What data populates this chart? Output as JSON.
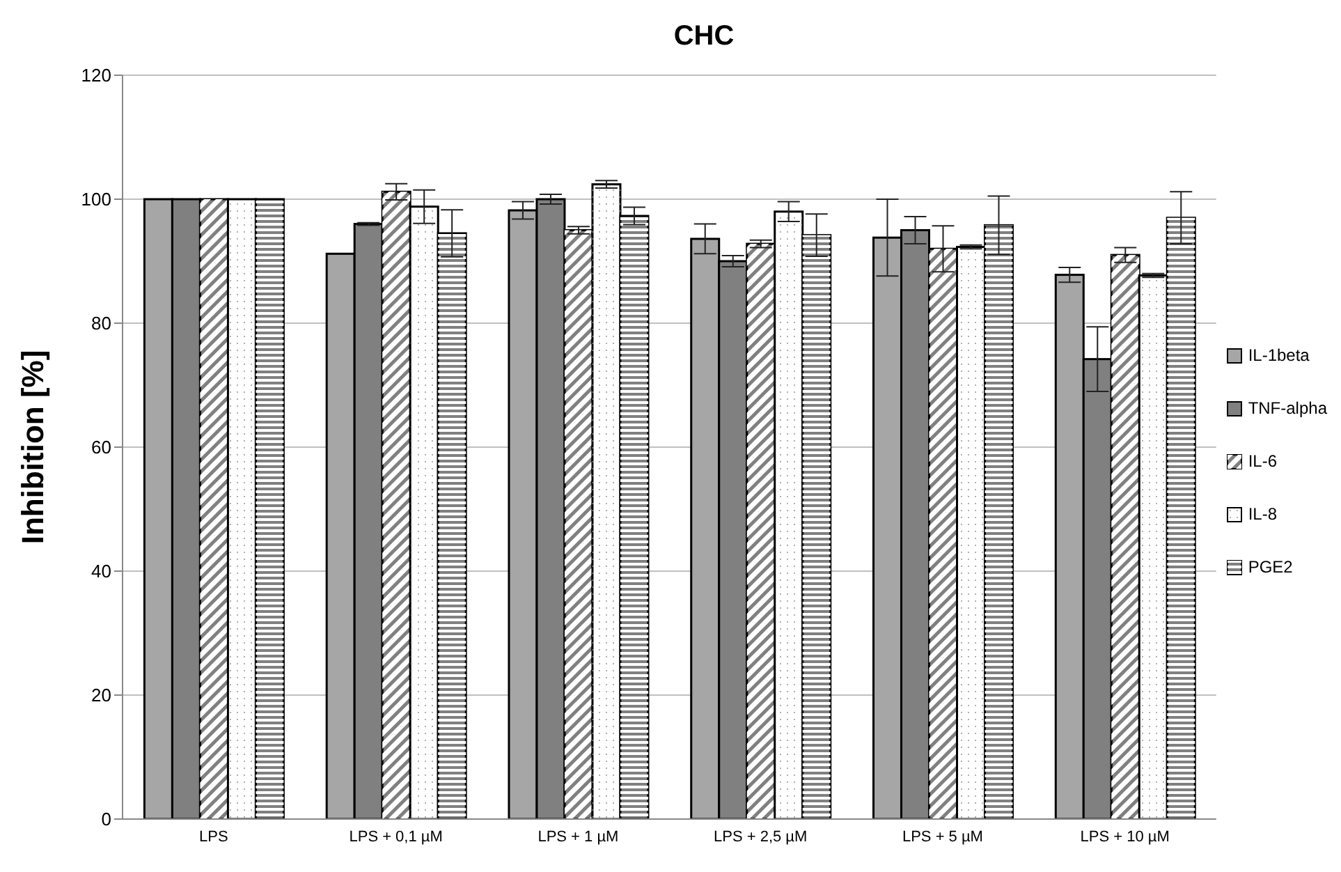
{
  "chart_data": {
    "type": "bar",
    "title": "CHC",
    "ylabel": "Inhibition [%]",
    "categories": [
      "LPS",
      "LPS + 0,1 µM",
      "LPS + 1 µM",
      "LPS + 2,5 µM",
      "LPS + 5 µM",
      "LPS + 10 µM"
    ],
    "series": [
      {
        "name": "IL-1beta",
        "color": "#a6a6a6",
        "values": [
          100,
          91.2,
          98.2,
          93.6,
          93.8,
          87.8
        ],
        "errors": [
          null,
          null,
          1.4,
          2.4,
          6.2,
          1.2
        ]
      },
      {
        "name": "TNF-alpha",
        "color": "#808080",
        "values": [
          100,
          96,
          100,
          90,
          95,
          74.2
        ],
        "errors": [
          null,
          0.2,
          0.8,
          0.9,
          2.2,
          5.2
        ]
      },
      {
        "name": "IL-6",
        "color": "#808080",
        "values": [
          100,
          101.2,
          95,
          92.8,
          92,
          91
        ],
        "errors": [
          null,
          1.3,
          0.6,
          0.6,
          3.7,
          1.2
        ]
      },
      {
        "name": "IL-8",
        "color": "#ffffff",
        "values": [
          100,
          98.8,
          102.4,
          98,
          92.3,
          87.7
        ],
        "errors": [
          null,
          2.7,
          0.6,
          1.6,
          0.3,
          0.3
        ]
      },
      {
        "name": "PGE2",
        "color": "#808080",
        "values": [
          100,
          94.5,
          97.3,
          94.2,
          95.8,
          97
        ],
        "errors": [
          null,
          3.8,
          1.4,
          3.4,
          4.7,
          4.2
        ]
      }
    ],
    "ylim": [
      0,
      120
    ],
    "yticks": [
      0,
      20,
      40,
      60,
      80,
      100,
      120
    ],
    "grid": "y",
    "legend": "right"
  }
}
